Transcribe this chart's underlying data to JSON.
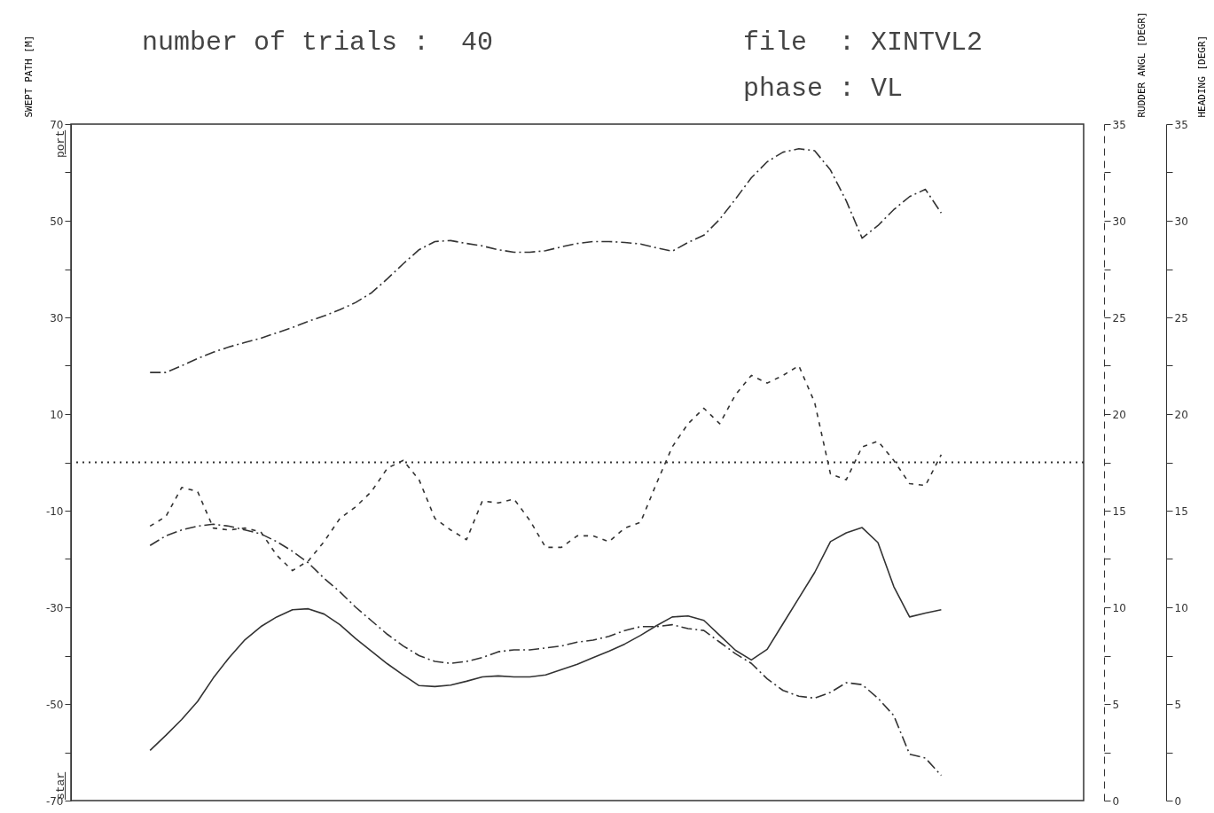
{
  "chart_data": {
    "type": "line",
    "title": "number of trials :  40",
    "annotations": [
      "file  : XINTVL2",
      "phase : VL",
      "port",
      "star"
    ],
    "ylabel": "SWEPT PATH [M]",
    "y2label": "RUDDER ANGL [DEGR]",
    "y3label": "HEADING [DEGR]",
    "categories": [
      null,
      null,
      null,
      null,
      null,
      null,
      null,
      null,
      null,
      null,
      null,
      null,
      null,
      null,
      null,
      null,
      null,
      null,
      null,
      null,
      null,
      null,
      null,
      null,
      null,
      null,
      null,
      null,
      null,
      null,
      null,
      null,
      null,
      null,
      null,
      null,
      null,
      null,
      null,
      null,
      null,
      null,
      null,
      null,
      null,
      null,
      null,
      null,
      null,
      null,
      null,
      null,
      null,
      null,
      null,
      null,
      null,
      null,
      null,
      null,
      null,
      null,
      null,
      null,
      null
    ],
    "tick_labels": "y",
    "ylim": [
      -70,
      70
    ],
    "yticks": [
      -70,
      {
        "value": -60,
        "label": null
      },
      -50,
      {
        "value": -40,
        "label": null
      },
      -30,
      {
        "value": -20,
        "label": null
      },
      -10,
      {
        "value": 0,
        "label": null
      },
      10,
      {
        "value": 20,
        "label": null
      },
      30,
      {
        "value": 40,
        "label": null
      },
      50,
      {
        "value": 60,
        "label": null
      },
      70
    ],
    "y2lim": [
      0,
      35
    ],
    "y2ticks": [
      0,
      {
        "value": 2.5,
        "label": null
      },
      5,
      {
        "value": 7.5,
        "label": null
      },
      10,
      {
        "value": 12.5,
        "label": null
      },
      15,
      {
        "value": 17.5,
        "label": null
      },
      20,
      {
        "value": 22.5,
        "label": null
      },
      25,
      {
        "value": 27.5,
        "label": null
      },
      30,
      {
        "value": 32.5,
        "label": null
      },
      35
    ],
    "y3lim": [
      0,
      35
    ],
    "y3ticks": [
      0,
      {
        "value": 2.5,
        "label": null
      },
      5,
      {
        "value": 7.5,
        "label": null
      },
      10,
      {
        "value": 12.5,
        "label": null
      },
      15,
      {
        "value": 17.5,
        "label": null
      },
      20,
      {
        "value": 22.5,
        "label": null
      },
      25,
      {
        "value": 27.5,
        "label": null
      },
      30,
      {
        "value": 32.5,
        "label": null
      },
      35
    ],
    "ref_lines": [
      {
        "axis": "y",
        "value": 0,
        "line_style": "dotted"
      }
    ],
    "series": [
      {
        "color": "#333333",
        "line_style": "dashed",
        "values": [
          null,
          null,
          null,
          null,
          null,
          18.6,
          18.6,
          20.0,
          21.5,
          22.8,
          23.9,
          24.8,
          25.7,
          26.8,
          27.9,
          29.2,
          30.3,
          31.6,
          33.1,
          35.1,
          38.0,
          41.1,
          44.0,
          45.7,
          45.9,
          45.3,
          44.8,
          44.0,
          43.5,
          43.5,
          43.8,
          44.6,
          45.3,
          45.7,
          45.7,
          45.5,
          45.2,
          44.4,
          43.7,
          45.5,
          47.0,
          50.3,
          54.5,
          58.9,
          62.2,
          64.2,
          64.9,
          64.5,
          60.5,
          54.1,
          46.4,
          49.0,
          52.3,
          55.0,
          56.5,
          51.6,
          null,
          null,
          null,
          null,
          null,
          null,
          null,
          null,
          null
        ]
      },
      {
        "color": "#333333",
        "line_style": "solid",
        "values": [
          null,
          null,
          null,
          null,
          null,
          -59.6,
          -56.5,
          -53.2,
          -49.5,
          -44.6,
          -40.4,
          -36.7,
          -34.0,
          -32.0,
          -30.5,
          -30.3,
          -31.4,
          -33.6,
          -36.5,
          -39.1,
          -41.7,
          -44.0,
          -46.2,
          -46.4,
          -46.1,
          -45.3,
          -44.4,
          -44.2,
          -44.4,
          -44.4,
          -44.0,
          -42.9,
          -41.8,
          -40.4,
          -39.1,
          -37.6,
          -35.8,
          -33.8,
          -32.0,
          -31.8,
          -32.7,
          -35.8,
          -38.9,
          -40.9,
          -38.7,
          -33.4,
          -28.1,
          -22.8,
          -16.4,
          -14.6,
          -13.5,
          -16.6,
          -25.7,
          -32.0,
          -31.2,
          -30.5,
          null,
          null,
          null,
          null,
          null,
          null,
          null,
          null,
          null
        ]
      },
      {
        "color": "#333333",
        "line_style": "dashed",
        "axis": "y2",
        "values": [
          null,
          null,
          null,
          null,
          null,
          14.2,
          14.7,
          16.2,
          16.0,
          14.1,
          14.0,
          14.1,
          13.9,
          12.7,
          11.9,
          12.4,
          13.4,
          14.6,
          15.2,
          16.0,
          17.2,
          17.6,
          16.6,
          14.6,
          14.0,
          13.5,
          15.5,
          15.4,
          15.6,
          14.5,
          13.1,
          13.1,
          13.7,
          13.7,
          13.4,
          14.1,
          14.4,
          16.4,
          18.3,
          19.5,
          20.3,
          19.5,
          21.0,
          22.0,
          21.6,
          22.0,
          22.5,
          20.6,
          16.9,
          16.6,
          18.3,
          18.6,
          17.6,
          16.4,
          16.3,
          17.9,
          null,
          null,
          null,
          null,
          null,
          null,
          null,
          null,
          null
        ]
      },
      {
        "color": "#333333",
        "line_style": "dashed",
        "axis": "y3",
        "values": [
          null,
          null,
          null,
          null,
          null,
          13.2,
          13.7,
          14.0,
          14.2,
          14.3,
          14.2,
          14.0,
          13.8,
          13.4,
          12.9,
          12.3,
          11.5,
          10.8,
          10.0,
          9.3,
          8.6,
          8.0,
          7.5,
          7.2,
          7.1,
          7.2,
          7.4,
          7.7,
          7.8,
          7.8,
          7.9,
          8.0,
          8.2,
          8.3,
          8.5,
          8.8,
          9.0,
          9.0,
          9.1,
          8.9,
          8.8,
          8.2,
          7.6,
          7.1,
          6.3,
          5.7,
          5.4,
          5.3,
          5.6,
          6.1,
          6.0,
          5.3,
          4.4,
          2.4,
          2.2,
          1.3,
          null,
          null,
          null,
          null,
          null,
          null,
          null,
          null,
          null
        ]
      }
    ]
  }
}
